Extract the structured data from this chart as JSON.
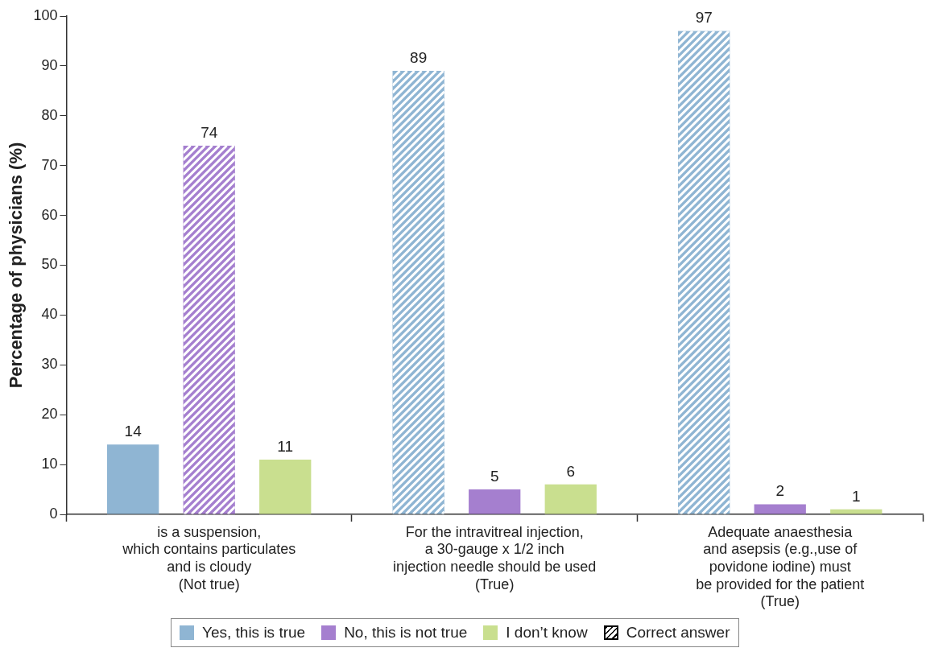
{
  "chart_data": {
    "type": "bar",
    "ylabel": "Percentage of physicians (%)",
    "categories": [
      "is a suspension,\nwhich contains particulates\nand is cloudy\n(Not true)",
      "For the intravitreal injection,\na 30-gauge x 1/2 inch\ninjection needle should be used\n(True)",
      "Adequate anaesthesia\nand asepsis (e.g.,use of\npovidone iodine) must\nbe provided for the patient\n(True)"
    ],
    "series": [
      {
        "name": "Yes, this is true",
        "color": "#8fb5d3",
        "values": [
          14,
          89,
          97
        ]
      },
      {
        "name": "No, this is not true",
        "color": "#a57fcf",
        "values": [
          74,
          5,
          2
        ]
      },
      {
        "name": "I don’t know",
        "color": "#c9df8f",
        "values": [
          11,
          6,
          1
        ]
      },
      {
        "name": "Correct answer",
        "type": "other",
        "color": "#000000",
        "values": [
          null,
          null,
          null
        ]
      }
    ],
    "ylim": [
      0,
      100
    ],
    "yticks": [
      0,
      10,
      20,
      30,
      40,
      50,
      60,
      70,
      80,
      90,
      100
    ],
    "data_labels": true,
    "legend": "bottom"
  }
}
